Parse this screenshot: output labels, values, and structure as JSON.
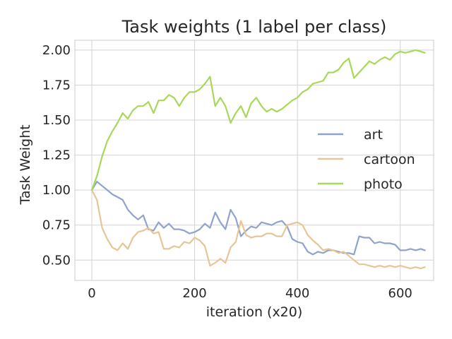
{
  "chart_data": {
    "type": "line",
    "title": "Task weights (1 label per class)",
    "xlabel": "iteration (x20)",
    "ylabel": "Task Weight",
    "xlim": [
      -33,
      665
    ],
    "ylim": [
      0.355,
      2.07
    ],
    "xticks": [
      0,
      200,
      400,
      600
    ],
    "yticks": [
      0.5,
      0.75,
      1.0,
      1.25,
      1.5,
      1.75,
      2.0
    ],
    "ytick_labels": [
      "0.50",
      "0.75",
      "1.00",
      "1.25",
      "1.50",
      "1.75",
      "2.00"
    ],
    "grid": true,
    "legend_position": "center-right",
    "series": [
      {
        "name": "art",
        "color": "#8fa3cc",
        "x": [
          0,
          10,
          20,
          30,
          40,
          50,
          60,
          70,
          80,
          90,
          100,
          110,
          120,
          130,
          140,
          150,
          160,
          170,
          180,
          190,
          200,
          210,
          220,
          230,
          240,
          250,
          260,
          270,
          280,
          290,
          300,
          310,
          320,
          330,
          340,
          350,
          360,
          370,
          380,
          390,
          400,
          410,
          420,
          430,
          440,
          450,
          460,
          470,
          480,
          490,
          500,
          510,
          520,
          530,
          540,
          550,
          560,
          570,
          580,
          590,
          600,
          610,
          620,
          630,
          640,
          648
        ],
        "y": [
          1.0,
          1.06,
          1.03,
          1.0,
          0.97,
          0.95,
          0.93,
          0.86,
          0.82,
          0.79,
          0.82,
          0.72,
          0.71,
          0.77,
          0.73,
          0.76,
          0.72,
          0.72,
          0.71,
          0.69,
          0.7,
          0.72,
          0.76,
          0.73,
          0.84,
          0.77,
          0.72,
          0.86,
          0.8,
          0.67,
          0.71,
          0.74,
          0.73,
          0.77,
          0.76,
          0.75,
          0.77,
          0.78,
          0.74,
          0.65,
          0.63,
          0.62,
          0.56,
          0.54,
          0.56,
          0.55,
          0.57,
          0.57,
          0.56,
          0.55,
          0.55,
          0.54,
          0.67,
          0.66,
          0.66,
          0.62,
          0.63,
          0.62,
          0.62,
          0.61,
          0.57,
          0.57,
          0.58,
          0.57,
          0.58,
          0.57
        ]
      },
      {
        "name": "cartoon",
        "color": "#e6c596",
        "x": [
          0,
          10,
          20,
          30,
          40,
          50,
          60,
          70,
          80,
          90,
          100,
          110,
          120,
          130,
          140,
          150,
          160,
          170,
          180,
          190,
          200,
          210,
          220,
          230,
          240,
          250,
          260,
          270,
          280,
          290,
          300,
          310,
          320,
          330,
          340,
          350,
          360,
          370,
          380,
          390,
          400,
          410,
          420,
          430,
          440,
          450,
          460,
          470,
          480,
          490,
          500,
          510,
          520,
          530,
          540,
          550,
          560,
          570,
          580,
          590,
          600,
          610,
          620,
          630,
          640,
          648
        ],
        "y": [
          1.0,
          0.93,
          0.73,
          0.65,
          0.59,
          0.57,
          0.62,
          0.58,
          0.66,
          0.7,
          0.71,
          0.73,
          0.69,
          0.7,
          0.58,
          0.58,
          0.6,
          0.59,
          0.63,
          0.62,
          0.66,
          0.64,
          0.6,
          0.46,
          0.48,
          0.51,
          0.48,
          0.59,
          0.63,
          0.78,
          0.68,
          0.66,
          0.67,
          0.67,
          0.69,
          0.69,
          0.67,
          0.67,
          0.75,
          0.76,
          0.77,
          0.75,
          0.68,
          0.64,
          0.61,
          0.57,
          0.58,
          0.57,
          0.55,
          0.56,
          0.53,
          0.5,
          0.47,
          0.47,
          0.46,
          0.45,
          0.46,
          0.45,
          0.46,
          0.45,
          0.46,
          0.45,
          0.44,
          0.45,
          0.44,
          0.45
        ]
      },
      {
        "name": "photo",
        "color": "#a8d85a",
        "x": [
          0,
          10,
          20,
          30,
          40,
          50,
          60,
          70,
          80,
          90,
          100,
          110,
          120,
          130,
          140,
          150,
          160,
          170,
          180,
          190,
          200,
          210,
          220,
          230,
          240,
          250,
          260,
          270,
          280,
          290,
          300,
          310,
          320,
          330,
          340,
          350,
          360,
          370,
          380,
          390,
          400,
          410,
          420,
          430,
          440,
          450,
          460,
          470,
          480,
          490,
          500,
          510,
          520,
          530,
          540,
          550,
          560,
          570,
          580,
          590,
          600,
          610,
          620,
          630,
          640,
          648
        ],
        "y": [
          1.0,
          1.1,
          1.24,
          1.35,
          1.42,
          1.48,
          1.55,
          1.51,
          1.57,
          1.6,
          1.6,
          1.63,
          1.55,
          1.64,
          1.64,
          1.68,
          1.66,
          1.6,
          1.66,
          1.7,
          1.7,
          1.72,
          1.76,
          1.81,
          1.6,
          1.66,
          1.6,
          1.48,
          1.55,
          1.6,
          1.52,
          1.62,
          1.66,
          1.6,
          1.56,
          1.58,
          1.56,
          1.58,
          1.61,
          1.64,
          1.66,
          1.7,
          1.72,
          1.76,
          1.77,
          1.78,
          1.84,
          1.84,
          1.86,
          1.91,
          1.94,
          1.8,
          1.84,
          1.88,
          1.92,
          1.9,
          1.93,
          1.95,
          1.93,
          1.97,
          1.99,
          1.98,
          1.99,
          2.0,
          1.99,
          1.98
        ]
      }
    ]
  }
}
